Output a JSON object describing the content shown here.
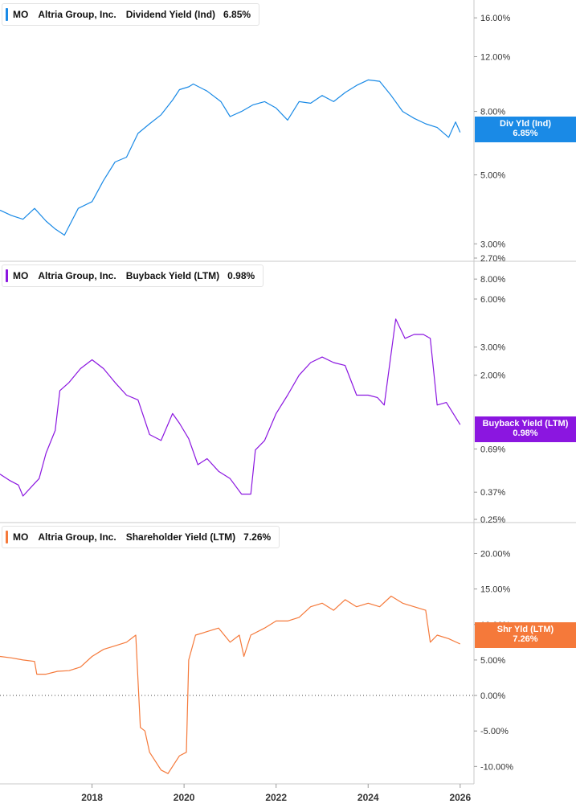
{
  "panels": [
    {
      "ticker": "MO",
      "company": "Altria Group, Inc.",
      "metric": "Dividend Yield (Ind)",
      "current_value": "6.85%",
      "tag_label": "Div Yld (Ind)",
      "tag_value": "6.85%",
      "color": "#1a8ae6"
    },
    {
      "ticker": "MO",
      "company": "Altria Group, Inc.",
      "metric": "Buyback Yield (LTM)",
      "current_value": "0.98%",
      "tag_label": "Buyback Yield (LTM)",
      "tag_value": "0.98%",
      "color": "#8b16e0"
    },
    {
      "ticker": "MO",
      "company": "Altria Group, Inc.",
      "metric": "Shareholder Yield (LTM)",
      "current_value": "7.26%",
      "tag_label": "Shr Yld (LTM)",
      "tag_value": "7.26%",
      "color": "#f5793a"
    }
  ],
  "chart_data": [
    {
      "type": "line",
      "title": "MO Altria Group, Inc. Dividend Yield (Ind) 6.85%",
      "yscale": "log",
      "ylim": [
        2.7,
        17.0
      ],
      "yticks": [
        2.7,
        3.0,
        5.0,
        8.0,
        12.0,
        16.0
      ],
      "ytick_labels": [
        "2.70%",
        "3.00%",
        "5.00%",
        "8.00%",
        "12.00%",
        "16.00%"
      ],
      "series": [
        {
          "name": "Div Yld (Ind)",
          "x": [
            2016.0,
            2016.25,
            2016.5,
            2016.75,
            2017.0,
            2017.2,
            2017.4,
            2017.7,
            2018.0,
            2018.25,
            2018.5,
            2018.75,
            2019.0,
            2019.25,
            2019.5,
            2019.75,
            2019.9,
            2020.1,
            2020.2,
            2020.5,
            2020.8,
            2021.0,
            2021.25,
            2021.5,
            2021.75,
            2022.0,
            2022.25,
            2022.5,
            2022.75,
            2023.0,
            2023.25,
            2023.5,
            2023.75,
            2024.0,
            2024.25,
            2024.5,
            2024.75,
            2025.0,
            2025.25,
            2025.5,
            2025.75,
            2025.9,
            2026.0
          ],
          "values": [
            3.85,
            3.7,
            3.6,
            3.9,
            3.55,
            3.35,
            3.2,
            3.9,
            4.1,
            4.8,
            5.5,
            5.7,
            6.8,
            7.3,
            7.8,
            8.7,
            9.4,
            9.6,
            9.8,
            9.3,
            8.6,
            7.7,
            8.0,
            8.4,
            8.6,
            8.2,
            7.5,
            8.6,
            8.5,
            9.0,
            8.6,
            9.2,
            9.7,
            10.1,
            10.0,
            9.0,
            8.0,
            7.6,
            7.3,
            7.1,
            6.6,
            7.4,
            6.85
          ]
        }
      ]
    },
    {
      "type": "line",
      "title": "MO Altria Group, Inc. Buyback Yield (LTM) 0.98%",
      "yscale": "log",
      "ylim": [
        0.25,
        9.0
      ],
      "yticks": [
        0.25,
        0.37,
        0.69,
        2.0,
        3.0,
        6.0,
        8.0
      ],
      "ytick_labels": [
        "0.25%",
        "0.37%",
        "0.69%",
        "2.00%",
        "3.00%",
        "6.00%",
        "8.00%"
      ],
      "series": [
        {
          "name": "Buyback Yield (LTM)",
          "x": [
            2016.0,
            2016.2,
            2016.4,
            2016.5,
            2016.75,
            2016.85,
            2017.0,
            2017.2,
            2017.3,
            2017.5,
            2017.75,
            2018.0,
            2018.25,
            2018.5,
            2018.75,
            2019.0,
            2019.25,
            2019.5,
            2019.75,
            2019.9,
            2020.1,
            2020.3,
            2020.5,
            2020.75,
            2021.0,
            2021.25,
            2021.45,
            2021.55,
            2021.75,
            2022.0,
            2022.25,
            2022.5,
            2022.75,
            2023.0,
            2023.25,
            2023.5,
            2023.75,
            2024.0,
            2024.2,
            2024.35,
            2024.6,
            2024.8,
            2025.0,
            2025.2,
            2025.35,
            2025.5,
            2025.7,
            2026.0
          ],
          "values": [
            0.48,
            0.44,
            0.41,
            0.35,
            0.42,
            0.45,
            0.65,
            0.9,
            1.6,
            1.8,
            2.2,
            2.5,
            2.2,
            1.8,
            1.5,
            1.4,
            0.85,
            0.78,
            1.15,
            1.0,
            0.8,
            0.55,
            0.6,
            0.5,
            0.45,
            0.36,
            0.36,
            0.68,
            0.78,
            1.15,
            1.5,
            2.0,
            2.4,
            2.6,
            2.4,
            2.3,
            1.5,
            1.5,
            1.45,
            1.3,
            4.5,
            3.4,
            3.6,
            3.6,
            3.4,
            1.3,
            1.35,
            0.98
          ]
        }
      ]
    },
    {
      "type": "line",
      "title": "MO Altria Group, Inc. Shareholder Yield (LTM) 7.26%",
      "ylim": [
        -12.0,
        23.0
      ],
      "yticks": [
        -10.0,
        -5.0,
        0.0,
        5.0,
        10.0,
        15.0,
        20.0
      ],
      "ytick_labels": [
        "-10.00%",
        "-5.00%",
        "0.00%",
        "5.00%",
        "10.00%",
        "15.00%",
        "20.00%"
      ],
      "reference_line": 0.0,
      "series": [
        {
          "name": "Shr Yld (LTM)",
          "x": [
            2016.0,
            2016.25,
            2016.5,
            2016.75,
            2016.8,
            2017.0,
            2017.25,
            2017.5,
            2017.75,
            2018.0,
            2018.25,
            2018.5,
            2018.75,
            2018.95,
            2019.05,
            2019.15,
            2019.25,
            2019.5,
            2019.65,
            2019.75,
            2019.9,
            2020.05,
            2020.1,
            2020.25,
            2020.5,
            2020.75,
            2021.0,
            2021.2,
            2021.3,
            2021.45,
            2021.75,
            2022.0,
            2022.25,
            2022.5,
            2022.75,
            2023.0,
            2023.25,
            2023.5,
            2023.75,
            2024.0,
            2024.25,
            2024.5,
            2024.75,
            2025.0,
            2025.25,
            2025.35,
            2025.5,
            2025.75,
            2026.0
          ],
          "values": [
            5.5,
            5.3,
            5.0,
            4.8,
            3.0,
            3.0,
            3.4,
            3.5,
            4.0,
            5.5,
            6.5,
            7.0,
            7.5,
            8.5,
            -4.5,
            -5.0,
            -8.0,
            -10.5,
            -11.0,
            -10.0,
            -8.5,
            -8.0,
            5.0,
            8.5,
            9.0,
            9.5,
            7.5,
            8.5,
            5.5,
            8.5,
            9.5,
            10.5,
            10.5,
            11.0,
            12.5,
            13.0,
            12.0,
            13.5,
            12.5,
            13.0,
            12.5,
            14.0,
            13.0,
            12.5,
            12.0,
            7.5,
            8.5,
            8.0,
            7.26
          ]
        }
      ]
    }
  ],
  "x_axis": {
    "ticks": [
      2018,
      2020,
      2022,
      2024,
      2026
    ],
    "tick_labels": [
      "2018",
      "2020",
      "2022",
      "2024",
      "2026"
    ],
    "range": [
      2016.0,
      2026.3
    ]
  }
}
